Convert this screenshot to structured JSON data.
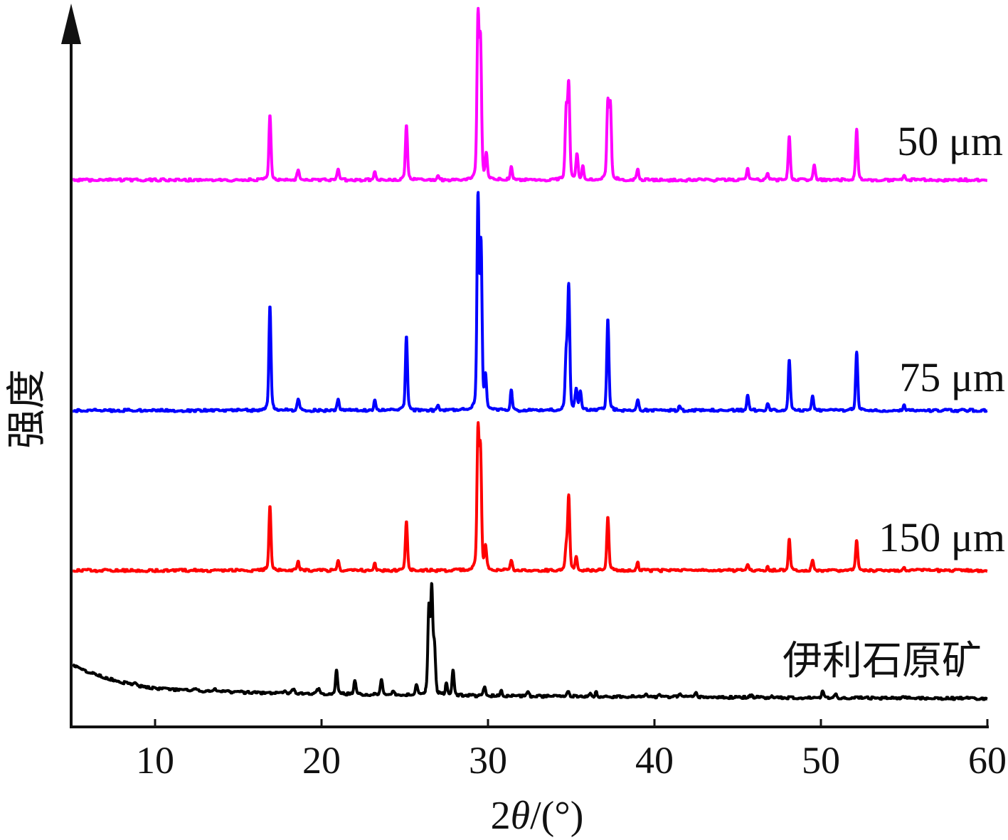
{
  "chart_data": {
    "type": "line",
    "xlabel": "2θ/(°)",
    "ylabel": "强度",
    "xlim": [
      5,
      60
    ],
    "xticks": [
      10,
      20,
      30,
      40,
      50,
      60
    ],
    "grid": false,
    "legend": "inline-right",
    "stacked": true,
    "series": [
      {
        "name": "50 μm",
        "color": "#FF00FF",
        "peaks": [
          [
            16.9,
            31.0
          ],
          [
            18.6,
            5.1
          ],
          [
            21.0,
            5.1
          ],
          [
            23.2,
            3.4
          ],
          [
            25.1,
            26.5
          ],
          [
            27.0,
            1.7
          ],
          [
            29.4,
            75.9
          ],
          [
            29.55,
            62.9
          ],
          [
            29.9,
            11.9
          ],
          [
            31.4,
            6.8
          ],
          [
            34.7,
            32.3
          ],
          [
            34.85,
            44.6
          ],
          [
            35.35,
            11.9
          ],
          [
            35.7,
            6.1
          ],
          [
            37.2,
            36.1
          ],
          [
            37.35,
            34.0
          ],
          [
            39.0,
            4.8
          ],
          [
            45.6,
            5.1
          ],
          [
            46.8,
            2.7
          ],
          [
            48.1,
            20.4
          ],
          [
            49.6,
            6.8
          ],
          [
            52.15,
            23.8
          ],
          [
            55.0,
            2.7
          ]
        ]
      },
      {
        "name": "75 μm",
        "color": "#0000FF",
        "peaks": [
          [
            16.9,
            50.0
          ],
          [
            18.6,
            5.8
          ],
          [
            21.0,
            5.8
          ],
          [
            23.2,
            5.1
          ],
          [
            25.1,
            35.7
          ],
          [
            27.0,
            2.7
          ],
          [
            29.4,
            100.0
          ],
          [
            29.58,
            76.5
          ],
          [
            29.85,
            15.3
          ],
          [
            31.4,
            9.2
          ],
          [
            34.7,
            25.5
          ],
          [
            34.85,
            57.8
          ],
          [
            35.3,
            10.2
          ],
          [
            35.55,
            8.5
          ],
          [
            37.2,
            44.2
          ],
          [
            39.0,
            5.1
          ],
          [
            41.5,
            1.7
          ],
          [
            45.6,
            6.8
          ],
          [
            46.8,
            3.4
          ],
          [
            48.1,
            23.8
          ],
          [
            49.5,
            7.5
          ],
          [
            52.15,
            27.9
          ],
          [
            55.0,
            2.7
          ]
        ]
      },
      {
        "name": "150 μm",
        "color": "#FF0000",
        "peaks": [
          [
            16.9,
            31.3
          ],
          [
            18.6,
            4.1
          ],
          [
            21.0,
            4.8
          ],
          [
            23.2,
            3.4
          ],
          [
            25.1,
            23.1
          ],
          [
            29.4,
            65.3
          ],
          [
            29.55,
            54.4
          ],
          [
            29.85,
            10.2
          ],
          [
            31.4,
            5.1
          ],
          [
            34.7,
            10.0
          ],
          [
            34.85,
            35.7
          ],
          [
            35.3,
            6.8
          ],
          [
            37.2,
            26.2
          ],
          [
            39.0,
            3.4
          ],
          [
            45.6,
            3.4
          ],
          [
            46.8,
            1.7
          ],
          [
            48.1,
            14.6
          ],
          [
            49.5,
            5.1
          ],
          [
            52.15,
            14.3
          ],
          [
            55.0,
            1.4
          ]
        ]
      },
      {
        "name": "伊利石原矿",
        "color": "#000000",
        "background": [
          [
            5,
            16.0
          ],
          [
            6,
            12.6
          ],
          [
            7,
            10.0
          ],
          [
            8,
            7.8
          ],
          [
            9,
            6.0
          ],
          [
            10,
            4.8
          ],
          [
            12,
            3.8
          ],
          [
            15,
            3.0
          ],
          [
            20,
            2.2
          ],
          [
            30,
            1.2
          ],
          [
            45,
            0.5
          ],
          [
            60,
            0
          ]
        ],
        "peaks": [
          [
            8.8,
            0.8
          ],
          [
            12.4,
            0.8
          ],
          [
            13.6,
            0.8
          ],
          [
            17.8,
            1.0
          ],
          [
            18.3,
            2.0
          ],
          [
            19.8,
            2.7
          ],
          [
            20.9,
            11.2
          ],
          [
            22.0,
            6.8
          ],
          [
            23.6,
            7.5
          ],
          [
            24.3,
            1.4
          ],
          [
            25.7,
            4.8
          ],
          [
            26.45,
            40.0
          ],
          [
            26.62,
            49.3
          ],
          [
            26.78,
            22.0
          ],
          [
            27.5,
            5.1
          ],
          [
            27.9,
            11.9
          ],
          [
            29.8,
            4.8
          ],
          [
            30.8,
            2.7
          ],
          [
            32.4,
            1.7
          ],
          [
            34.8,
            2.7
          ],
          [
            36.1,
            1.4
          ],
          [
            36.5,
            2.0
          ],
          [
            39.5,
            1.7
          ],
          [
            40.3,
            1.0
          ],
          [
            41.5,
            1.4
          ],
          [
            42.5,
            2.4
          ],
          [
            45.8,
            1.0
          ],
          [
            47.0,
            1.0
          ],
          [
            50.1,
            3.4
          ],
          [
            50.9,
            1.7
          ],
          [
            54.9,
            1.0
          ]
        ]
      }
    ]
  }
}
